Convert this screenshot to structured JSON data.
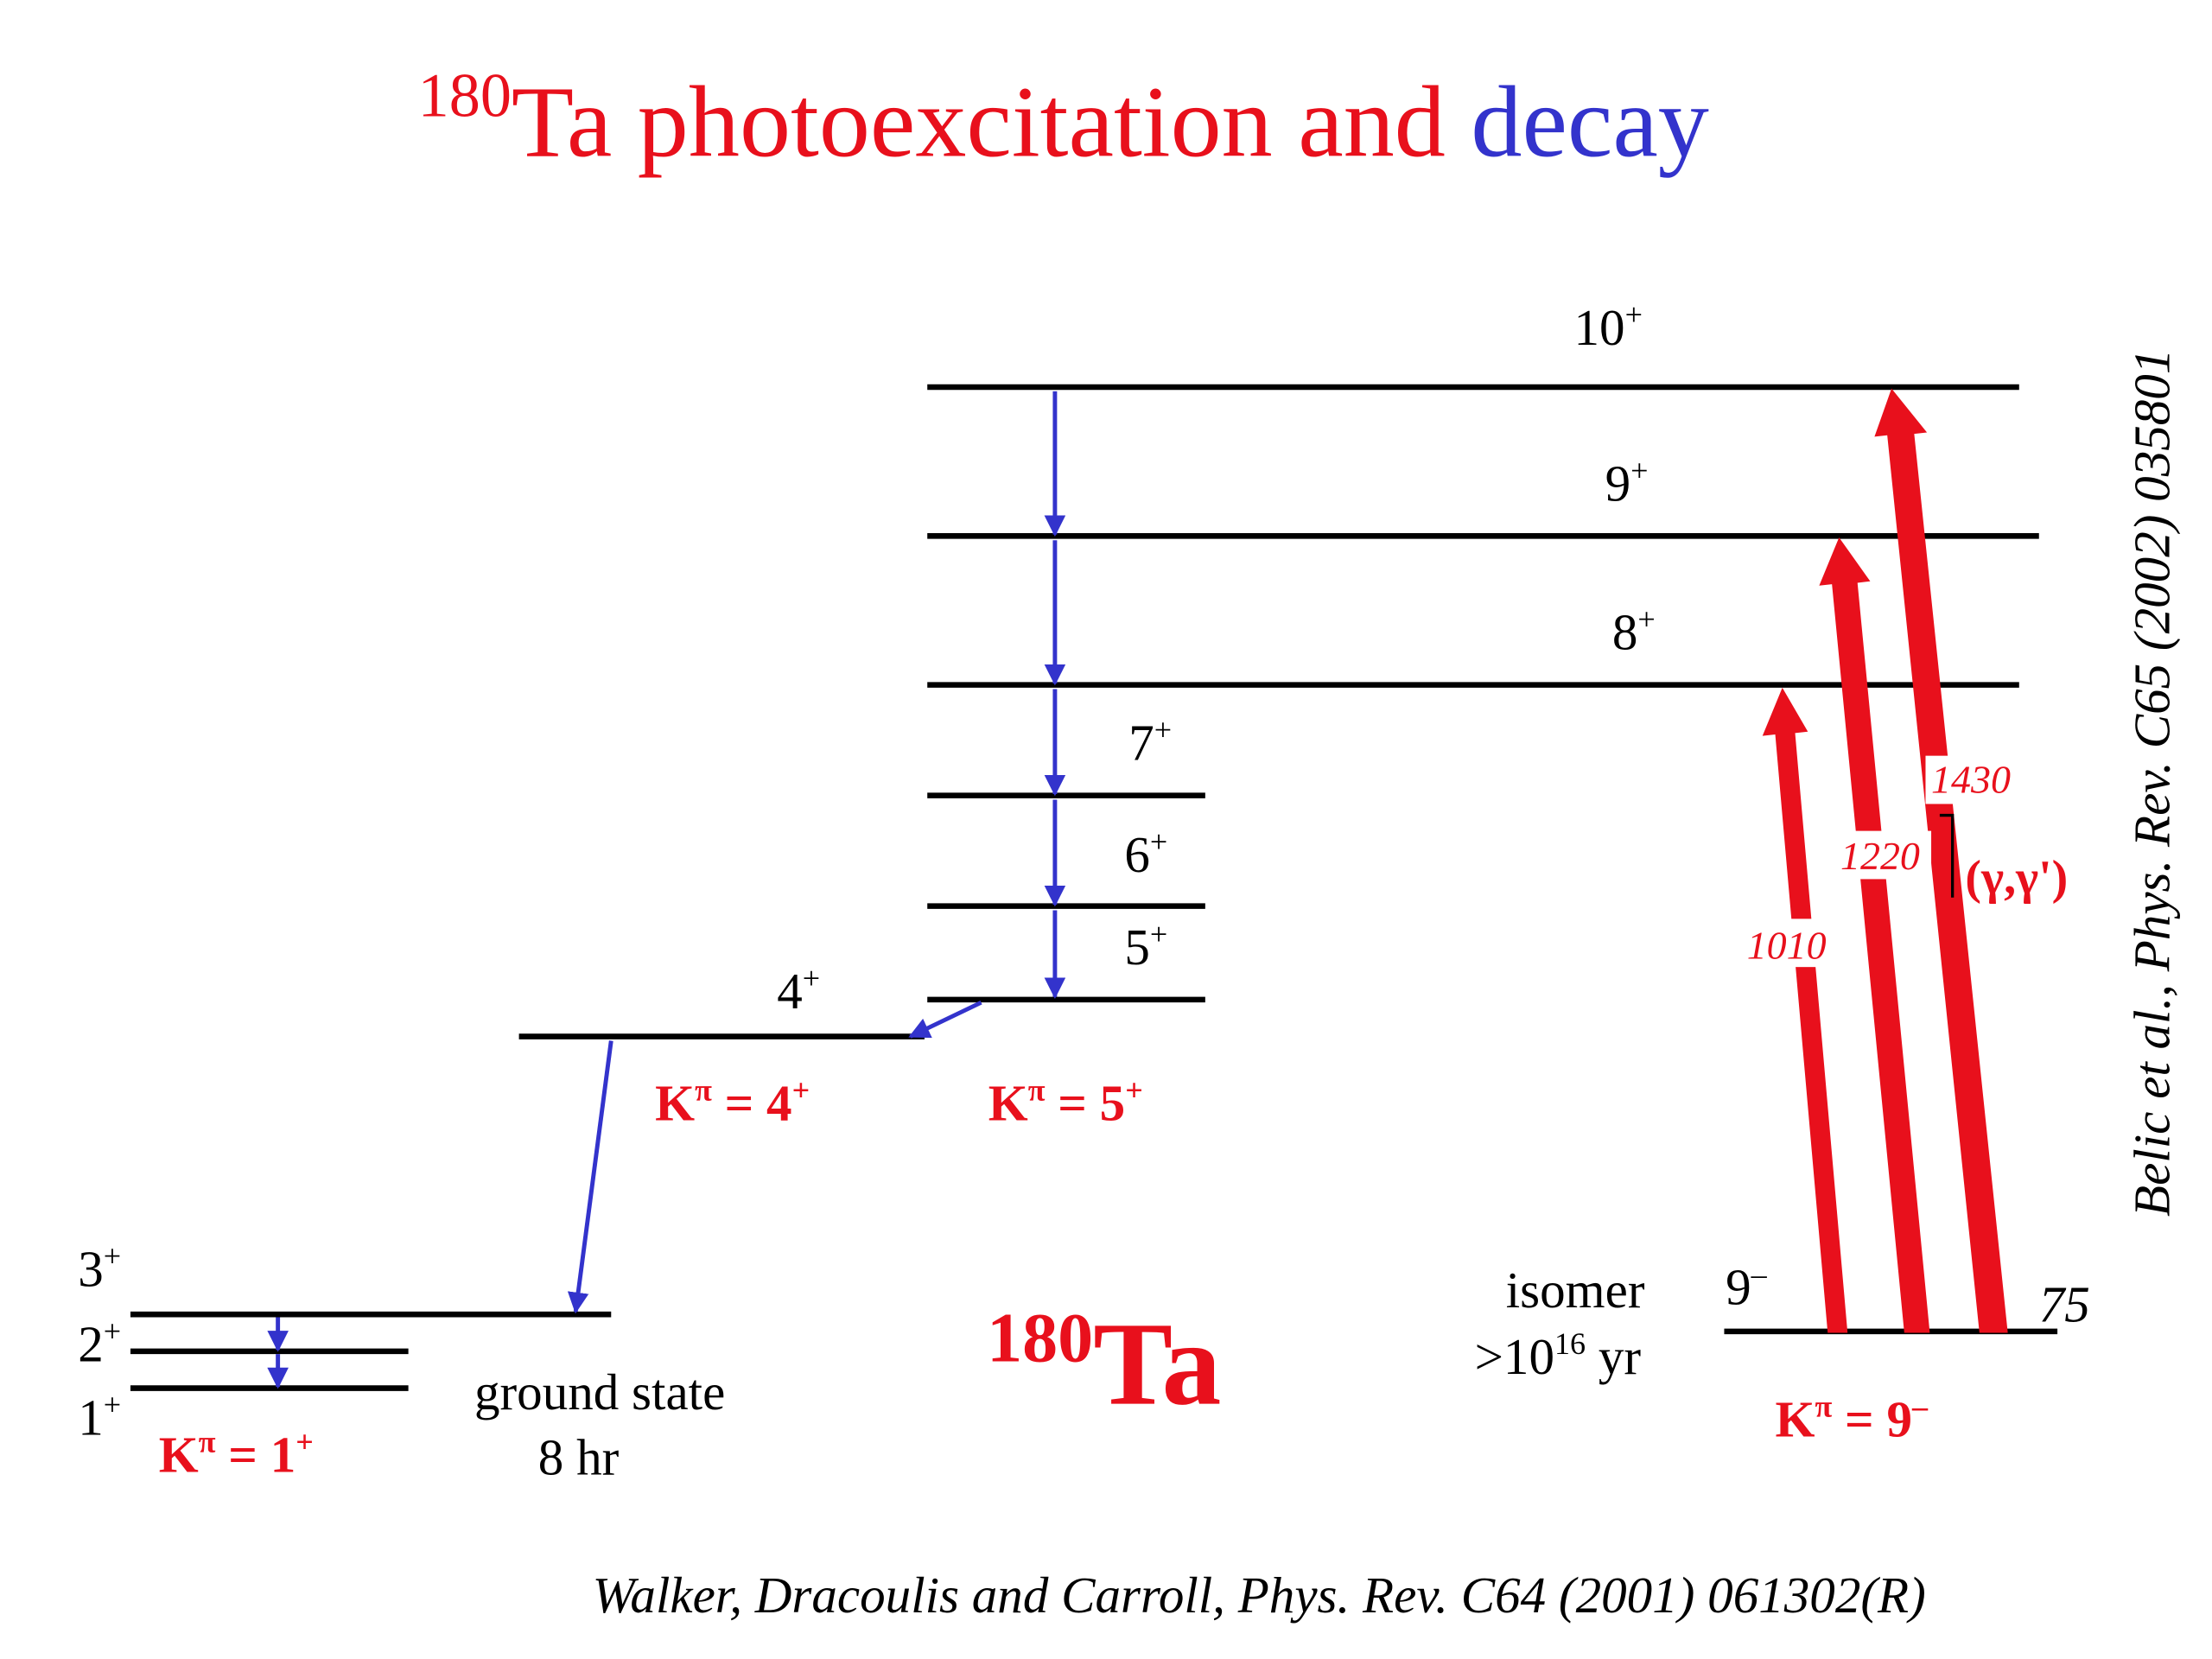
{
  "title": {
    "superscript": "180",
    "red_text": "Ta photoexcitation and",
    "blue_text": "decay"
  },
  "colors": {
    "photoexcitation": "#e8101c",
    "decay": "#3333cc",
    "level": "#000000"
  },
  "levels": {
    "l10": {
      "spin": "10",
      "parity": "+"
    },
    "l9": {
      "spin": "9",
      "parity": "+"
    },
    "l8": {
      "spin": "8",
      "parity": "+"
    },
    "l7": {
      "spin": "7",
      "parity": "+"
    },
    "l6": {
      "spin": "6",
      "parity": "+"
    },
    "l5": {
      "spin": "5",
      "parity": "+"
    },
    "l4": {
      "spin": "4",
      "parity": "+"
    },
    "l3": {
      "spin": "3",
      "parity": "+"
    },
    "l2": {
      "spin": "2",
      "parity": "+"
    },
    "l1": {
      "spin": "1",
      "parity": "+"
    },
    "iso": {
      "spin": "9",
      "parity": "–"
    }
  },
  "bands": {
    "k1": {
      "prefix": "K",
      "pi": "π",
      "eq": " = 1",
      "parity": "+"
    },
    "k4": {
      "prefix": "K",
      "pi": "π",
      "eq": " = 4",
      "parity": "+"
    },
    "k5": {
      "prefix": "K",
      "pi": "π",
      "eq": " = 5",
      "parity": "+"
    },
    "k9": {
      "prefix": "K",
      "pi": "π",
      "eq": " = 9",
      "parity": "–"
    }
  },
  "ground_state": {
    "line1": "ground state",
    "line2": "8 hr"
  },
  "isomer": {
    "label": "isomer",
    "half_life_prefix": ">10",
    "half_life_exp": "16",
    "half_life_unit": " yr",
    "energy": "75"
  },
  "transitions": {
    "e1010": "1010",
    "e1220": "1220",
    "e1430": "1430",
    "reaction": "(γ,γ')"
  },
  "nucleus": {
    "mass": "180",
    "symbol": "Ta"
  },
  "citations": {
    "bottom": "Walker, Dracoulis and Carroll, Phys. Rev. C64 (2001) 061302(R)",
    "side": "Belic et al., Phys. Rev. C65 (2002) 035801"
  }
}
